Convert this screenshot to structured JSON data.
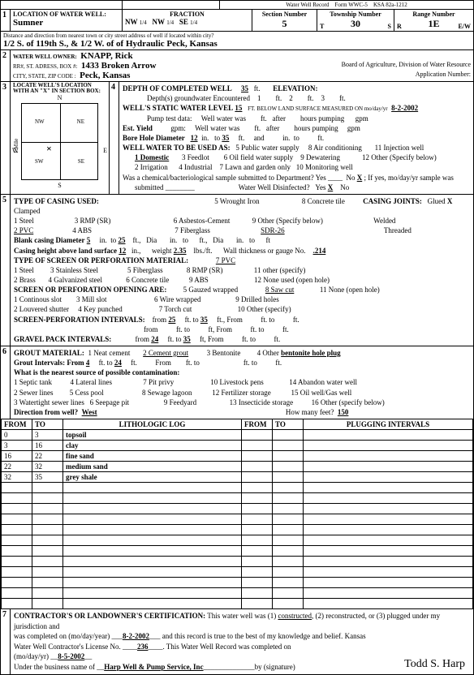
{
  "form": {
    "title": "Water Well Record",
    "formno": "Form WWC-5",
    "ksa": "KSA 82a-1212"
  },
  "sec1": {
    "location_label": "LOCATION OF WATER WELL:",
    "county": "Sumner",
    "fraction_label": "FRACTION",
    "frac1": "NW",
    "frac1s": "1/4",
    "frac2": "NW",
    "frac2s": "1/4",
    "frac3": "SE",
    "frac3s": "1/4",
    "section_label": "Section Number",
    "section": "5",
    "township_label": "Township Number",
    "township": "30",
    "tdir": "S",
    "range_label": "Range Number",
    "range": "1E",
    "rdir": "E/W",
    "distance_label": "Distance and direction from nearest town or city  street address of well if located within city?",
    "distance": "1/2 S. of 119th S., & 1/2 W. of of Hydraulic    Peck, Kansas"
  },
  "sec2": {
    "owner_label": "WATER WELL OWNER:",
    "owner": "KNAPP, Rick",
    "addr_label": "RR#, ST. ADRESS, BOX #:",
    "addr": "1433 Broken Arrow",
    "city_label": "CITY, STATE, ZIP CODE :",
    "city": "Peck, Kansas",
    "agency": "Board of Agriculture, Division of Water Resource",
    "appno_label": "Application Number:"
  },
  "sec3": {
    "label": "LOCATE WELL'S LOCATION WITH AN \"X\" IN SECTION BOX:",
    "n": "N",
    "s": "S",
    "w": "W",
    "e": "E",
    "nw": "NW",
    "ne": "NE",
    "sw": "SW",
    "se": "SE",
    "mile": "1 Mile"
  },
  "sec4": {
    "depth_label": "DEPTH OF COMPLETED WELL",
    "depth": "35",
    "ft": "ft.",
    "elev_label": "ELEVATION:",
    "depths_label": "Depth(s) groundwater Encountered",
    "d1": "1",
    "d2": "2",
    "d3": "3",
    "swl_label": "WELL'S STATIC WATER LEVEL",
    "swl": "15",
    "swl_note": "FT. BELOW LAND SURFACE MEASURED ON mo/day/yr",
    "swl_date": "8-2-2002",
    "pump_label": "Pump test data:",
    "wellwater": "Well water was",
    "after": "after",
    "hours": "hours pumping",
    "gpm": "gpm",
    "est_label": "Est. Yield",
    "bore_label": "Bore Hole Diameter",
    "bore": "12",
    "in": "in.",
    "to": "to",
    "bore_to": "35",
    "and": "and",
    "use_label": "WELL WATER TO BE USED AS:",
    "u1": "1 Domestic",
    "u2": "2 Irrigation",
    "u3": "3 Feedlot",
    "u4": "4 Industrial",
    "u5": "5 Public water supply",
    "u6": "6 Oil field water supply",
    "u7": "7 Lawn and garden only",
    "u8": "8 Air conditioning",
    "u9": "9 Dewatering",
    "u10": "10 Monitoring well",
    "u11": "11 Injection well",
    "u12": "12 Other (Specify below)",
    "chem_label": "Was a chemical/bacteriological sample submitted to Department?  Yes",
    "no": "No",
    "x": "X",
    "ifyes": "; If yes, mo/day/yr sample was",
    "submitted": "submitted",
    "disinfect": "Water Well Disinfected?",
    "yes": "Yes"
  },
  "sec5": {
    "title": "TYPE OF CASING USED:",
    "c1": "1 Steel",
    "c2": "2 PVC",
    "c3": "3 RMP (SR)",
    "c4": "4 ABS",
    "c5": "5 Wrought Iron",
    "c6": "6 Asbestos-Cement",
    "c7": "7 Fiberglass",
    "c8": "8 Concrete tile",
    "c9": "9 Other (Specify below)",
    "sdr": "SDR-26",
    "joints_label": "CASING JOINTS:",
    "j1": "Glued",
    "j1x": "X",
    "j2": "Clamped",
    "j3": "Welded",
    "j4": "Threaded",
    "blank_label": "Blank casing Diameter",
    "bd": "5",
    "bd_to": "25",
    "dia": "Dia",
    "bd_in": "in.",
    "height_label": "Casing height above land surface",
    "height": "12",
    "weight_label": "weight",
    "weight": "2.35",
    "lbsft": "lbs./ft.",
    "wall_label": "Wall thickness or gauge No.",
    "wall": ".214",
    "perf_label": "TYPE OF SCREEN OR PERFORATION MATERIAL:",
    "p7": "7 PVC",
    "p1": "1 Steel",
    "p2": "2 Brass",
    "p3": "3 Stainless Steel",
    "p4": "4 Galvanized steel",
    "p5": "5 Fiberglass",
    "p6": "6 Concrete tile",
    "p8": "8 RMP (SR)",
    "p9": "9 ABS",
    "p10": "10 Asbestos-cement",
    "p11": "11 other (specify)",
    "p12": "12 None used (open hole)",
    "open_label": "SCREEN OR PERFORATION OPENING ARE:",
    "o1": "1 Continous slot",
    "o2": "2 Louvered shutter",
    "o3": "3 Mill slot",
    "o4": "4 Key punched",
    "o5": "5 Gauzed wrapped",
    "o6": "6 Wire wrapped",
    "o7": "7 Torch cut",
    "o8": "8 Saw cut",
    "o9": "9 Drilled holes",
    "o10": "10 Other (specify)",
    "o11": "11 None (open hole)",
    "sint_label": "SCREEN-PERFORATION INTERVALS:",
    "from": "from",
    "s_from": "25",
    "s_to": "35",
    "ftfrom": "ft., From",
    "gint_label": "GRAVEL PACK INTERVALS:",
    "g_from": "24",
    "g_to": "35"
  },
  "sec6": {
    "title": "GROUT MATERIAL:",
    "g1": "1 Neat cement",
    "g2": "2 Cement grout",
    "g3": "3 Bentonite",
    "g4": "4 Other",
    "g4v": "bentonite hole plug",
    "gi_label": "Grout Intervals: From",
    "gi_from": "4",
    "gi_to": "24",
    "contam_label": "What is the nearest source of possible contamination:",
    "s1": "1 Septic tank",
    "s2": "2 Sewer lines",
    "s3": "3 Watertight sewer lines",
    "s4": "4 Lateral lines",
    "s5": "5 Cess pool",
    "s6": "6 Seepage pit",
    "s7": "7 Pit privy",
    "s8": "8 Sewage lagoon",
    "s9": "9 Feedyard",
    "s10": "10 Livestock pens",
    "s11": "11 Fuel storage",
    "s12": "12 Fertilizer storage",
    "s13": "13 Insecticide storage",
    "s14": "14 Abandon water well",
    "s15": "15 Oil well/Gas well",
    "s16": "16 Other (specify below)",
    "dir_label": "Direction from well?",
    "dir": "West",
    "feet_label": "How many feet?",
    "feet": "150",
    "litho_hdr_from": "FROM",
    "litho_hdr_to": "TO",
    "litho_hdr_log": "LITHOLOGIC LOG",
    "plug_hdr": "PLUGGING INTERVALS",
    "litho": [
      {
        "from": "0",
        "to": "3",
        "log": "topsoil"
      },
      {
        "from": "3",
        "to": "16",
        "log": "clay"
      },
      {
        "from": "16",
        "to": "22",
        "log": "fine sand"
      },
      {
        "from": "22",
        "to": "32",
        "log": "medium sand"
      },
      {
        "from": "32",
        "to": "35",
        "log": "grey shale"
      }
    ]
  },
  "sec7": {
    "cert_label": "CONTRACTOR'S OR LANDOWNER'S CERTIFICATION:",
    "cert_text": "This water well was (1)",
    "constructed": "constructed",
    ", (2) reconstructed, or (3) plugged under my jurisdiction and": "",
    "cert_text2": ", (2) reconstructed, or (3) plugged under my jurisdiction and",
    "completed": "was completed on (mo/day/year)",
    "date1": "8-2-2002",
    "belief": "and this record is true to the best of my knowledge and belief.  Kansas",
    "lic_label": "Water Well Contractor's License No.",
    "lic": "236",
    "rec_label": ". This Water Well Record was completed on",
    "date2_label": "(mo/day/yr)",
    "date2": "8-5-2002",
    "biz_label": "Under the business name of",
    "biz": "Harp Well & Pump Service, Inc",
    "sig_label": "by (signature)",
    "sig": "Todd S. Harp"
  }
}
